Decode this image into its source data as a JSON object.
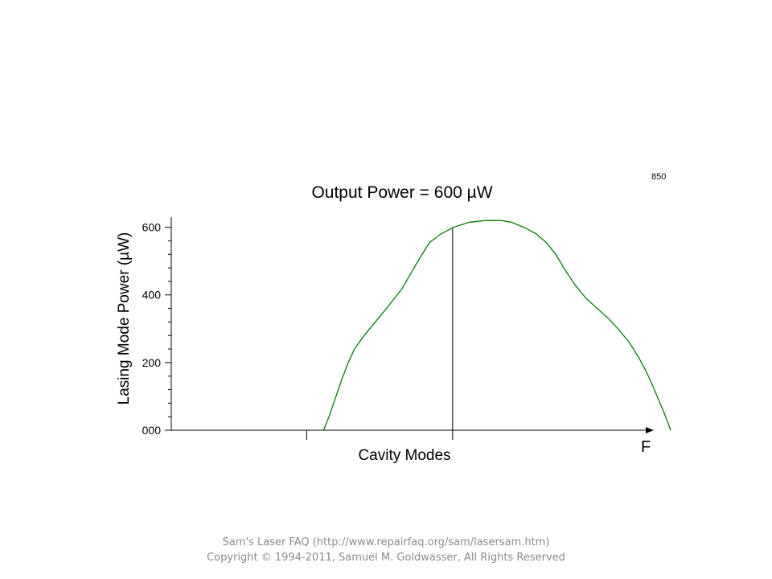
{
  "figure_id": "850",
  "footer": {
    "line1": "Sam's Laser FAQ (http://www.repairfaq.org/sam/lasersam.htm)",
    "line2": "Copyright © 1994-2011, Samuel M. Goldwasser, All Rights Reserved"
  },
  "chart_data": {
    "type": "line",
    "title": "Output Power = 600 µW",
    "xlabel": "Cavity Modes",
    "ylabel": "Lasing Mode Power (µW)",
    "x_axis_end_label": "F",
    "ylim": [
      0,
      630
    ],
    "xlim": [
      -4.24,
      10.72
    ],
    "y_ticks": [
      {
        "value": 0,
        "label": "000"
      },
      {
        "value": 200,
        "label": "200"
      },
      {
        "value": 400,
        "label": "400"
      },
      {
        "value": 600,
        "label": "600"
      }
    ],
    "y_minor_step": 40,
    "x_markers": [
      0,
      4.57
    ],
    "lasing_mode": {
      "x": 4.57,
      "power": 600
    },
    "colors": {
      "curve": "#0a7a0a",
      "axes": "#000000",
      "lasing_line": "#000000"
    },
    "series": [
      {
        "points": [
          [
            0.53,
            0
          ],
          [
            0.7,
            40
          ],
          [
            0.9,
            95
          ],
          [
            1.1,
            150
          ],
          [
            1.3,
            200
          ],
          [
            1.5,
            240
          ],
          [
            1.8,
            280
          ],
          [
            2.15,
            320
          ],
          [
            2.5,
            360
          ],
          [
            2.75,
            390
          ],
          [
            3.0,
            420
          ],
          [
            3.3,
            470
          ],
          [
            3.55,
            510
          ],
          [
            3.85,
            555
          ],
          [
            4.2,
            580
          ],
          [
            4.6,
            600
          ],
          [
            5.1,
            615
          ],
          [
            5.6,
            620
          ],
          [
            6.1,
            620
          ],
          [
            6.4,
            615
          ],
          [
            6.8,
            600
          ],
          [
            7.2,
            580
          ],
          [
            7.5,
            555
          ],
          [
            7.8,
            520
          ],
          [
            8.05,
            480
          ],
          [
            8.4,
            430
          ],
          [
            8.75,
            390
          ],
          [
            9.1,
            360
          ],
          [
            9.45,
            330
          ],
          [
            9.75,
            300
          ],
          [
            10.1,
            260
          ],
          [
            10.4,
            215
          ],
          [
            10.6,
            180
          ],
          [
            10.8,
            140
          ],
          [
            11.0,
            95
          ],
          [
            11.2,
            50
          ],
          [
            11.4,
            0
          ]
        ]
      }
    ]
  }
}
